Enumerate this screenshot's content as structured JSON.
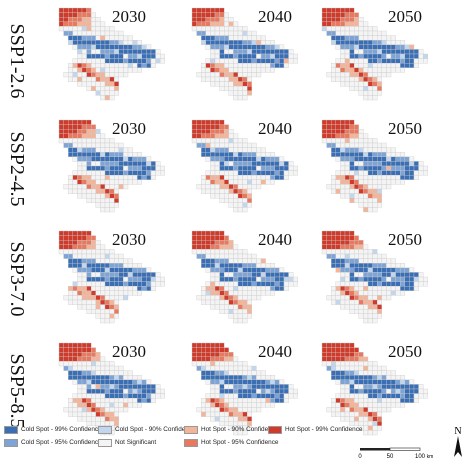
{
  "scenarios": [
    "SSP1-2.6",
    "SSP2-4.5",
    "SSP3-7.0",
    "SSP5-8.5"
  ],
  "years": [
    "2030",
    "2040",
    "2050"
  ],
  "classes": [
    {
      "key": "cold99",
      "label": "Cold Spot - 99% Confidence",
      "color": "#3a6fb6"
    },
    {
      "key": "cold95",
      "label": "Cold Spot - 95% Confidence",
      "color": "#7ea4d6"
    },
    {
      "key": "cold90",
      "label": "Cold Spot - 90% Confidence",
      "color": "#c2d6ee"
    },
    {
      "key": "ns",
      "label": "Not Significant",
      "color": "#f4f4f4"
    },
    {
      "key": "hot90",
      "label": "Hot Spot - 90% Confidence",
      "color": "#f3b49a"
    },
    {
      "key": "hot95",
      "label": "Hot Spot - 95% Confidence",
      "color": "#e8795f"
    },
    {
      "key": "hot99",
      "label": "Hot Spot - 99% Confidence",
      "color": "#cf3a2a"
    }
  ],
  "scale_bar": {
    "ticks": [
      "0",
      "50",
      "100"
    ],
    "unit": "km"
  },
  "north_arrow": {
    "label": "N"
  },
  "grid_colors": {
    "cell_stroke": "#c9c9c9",
    "background": "#ffffff"
  }
}
